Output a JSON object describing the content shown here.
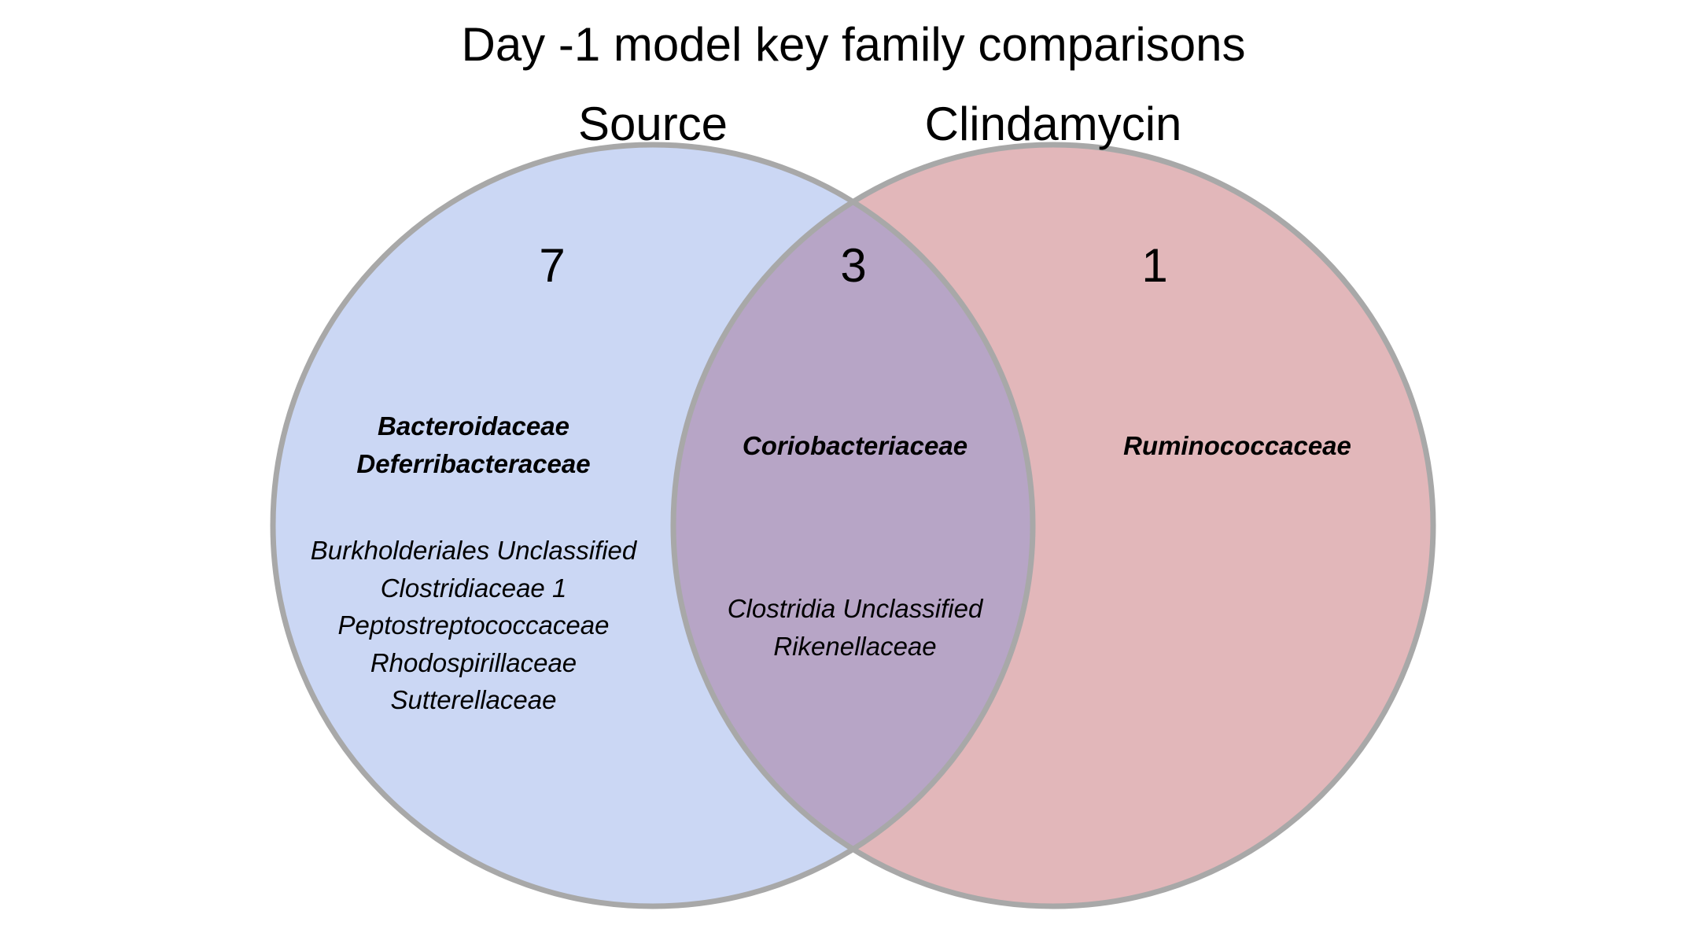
{
  "title": "Day -1 model key family comparisons",
  "colors": {
    "set_a_fill": "#CBD7F4",
    "set_b_fill": "#E2B7BA",
    "overlap_fill": "#B7A5C6",
    "outline": "#A8A8A8"
  },
  "sets": {
    "a": {
      "label": "Source",
      "count": "7",
      "bold_items": [
        "Bacteroidaceae",
        "Deferribacteraceae"
      ],
      "items": [
        "Burkholderiales Unclassified",
        "Clostridiaceae 1",
        "Peptostreptococcaceae",
        "Rhodospirillaceae",
        "Sutterellaceae"
      ]
    },
    "b": {
      "label": "Clindamycin",
      "count": "1",
      "bold_items": [
        "Ruminococcaceae"
      ],
      "items": []
    },
    "overlap": {
      "count": "3",
      "bold_items": [
        "Coriobacteriaceae"
      ],
      "items": [
        "Clostridia Unclassified",
        "Rikenellaceae"
      ]
    }
  }
}
